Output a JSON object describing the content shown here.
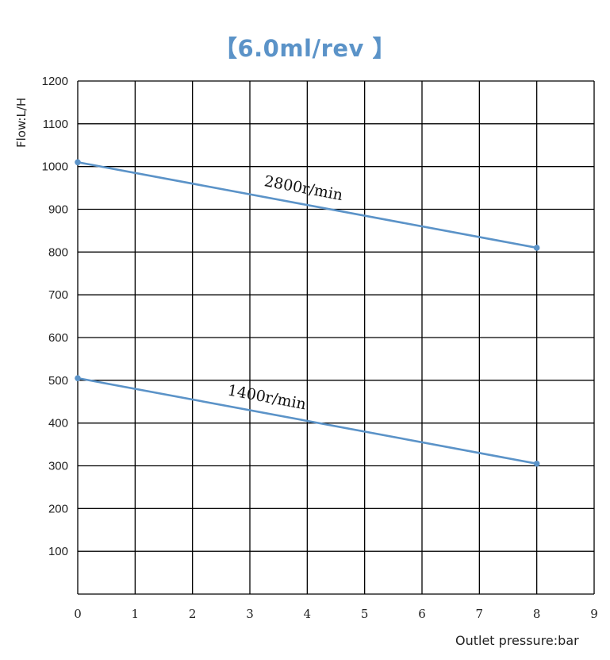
{
  "chart_data": {
    "type": "line",
    "title": "【6.0ml/rev 】",
    "xlabel": "Outlet pressure:bar",
    "ylabel": "Flow:L/H",
    "xlim": [
      0,
      9
    ],
    "ylim": [
      0,
      1200
    ],
    "xticks": [
      "0",
      "1",
      "2",
      "3",
      "4",
      "5",
      "6",
      "7",
      "8",
      "9"
    ],
    "yticks": [
      "100",
      "200",
      "300",
      "400",
      "500",
      "600",
      "700",
      "800",
      "900",
      "1000",
      "1100",
      "1200"
    ],
    "grid": true,
    "line_color": "#5b93c8",
    "series": [
      {
        "name": "2800r/min",
        "x": [
          0,
          8
        ],
        "values": [
          1010,
          810
        ]
      },
      {
        "name": "1400r/min",
        "x": [
          0,
          8
        ],
        "values": [
          505,
          305
        ]
      }
    ]
  }
}
